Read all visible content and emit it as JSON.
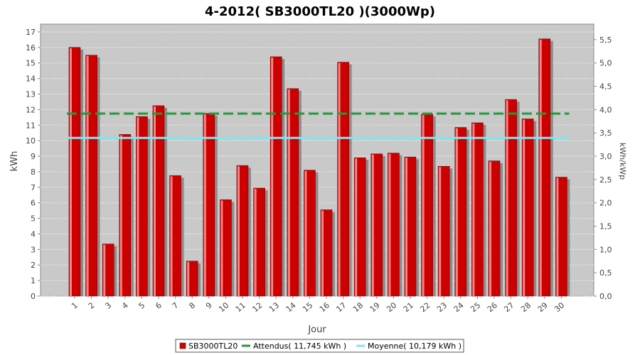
{
  "chart_data": {
    "type": "bar",
    "title": "4-2012( SB3000TL20 )(3000Wp)",
    "xlabel": "Jour",
    "ylabel": "kWh",
    "ylabel_right": "kWh/kWp",
    "ylim": [
      0,
      17.5
    ],
    "ylim_right": [
      0,
      5.833
    ],
    "yticks": [
      "0",
      "1",
      "2",
      "3",
      "4",
      "5",
      "6",
      "7",
      "8",
      "9",
      "10",
      "11",
      "12",
      "13",
      "14",
      "15",
      "16",
      "17"
    ],
    "yticks_right": [
      "0,0",
      "0,5",
      "1,0",
      "1,5",
      "2,0",
      "2,5",
      "3,0",
      "3,5",
      "4,0",
      "4,5",
      "5,0",
      "5,5"
    ],
    "categories": [
      "1",
      "2",
      "3",
      "4",
      "5",
      "6",
      "7",
      "8",
      "9",
      "10",
      "11",
      "12",
      "13",
      "14",
      "15",
      "16",
      "17",
      "18",
      "19",
      "20",
      "21",
      "22",
      "23",
      "24",
      "25",
      "26",
      "27",
      "28",
      "29",
      "30"
    ],
    "series": [
      {
        "name": "SB3000TL20",
        "color": "#cc0000",
        "values": [
          16.0,
          15.5,
          3.35,
          10.4,
          11.55,
          12.25,
          7.75,
          2.25,
          11.75,
          6.2,
          8.4,
          6.95,
          15.4,
          13.35,
          8.1,
          5.55,
          15.05,
          8.9,
          9.15,
          9.2,
          8.95,
          11.7,
          8.35,
          10.85,
          11.15,
          8.7,
          12.65,
          11.4,
          16.55,
          7.65
        ]
      }
    ],
    "reference_lines": [
      {
        "label": "Attendus( 11,745 kWh )",
        "value": 11.745,
        "color": "#1f9a3a"
      },
      {
        "label": "Moyenne( 10,179 kWh )",
        "value": 10.179,
        "color": "#7fe8ee"
      }
    ],
    "grid": true,
    "legend": "bottom"
  }
}
